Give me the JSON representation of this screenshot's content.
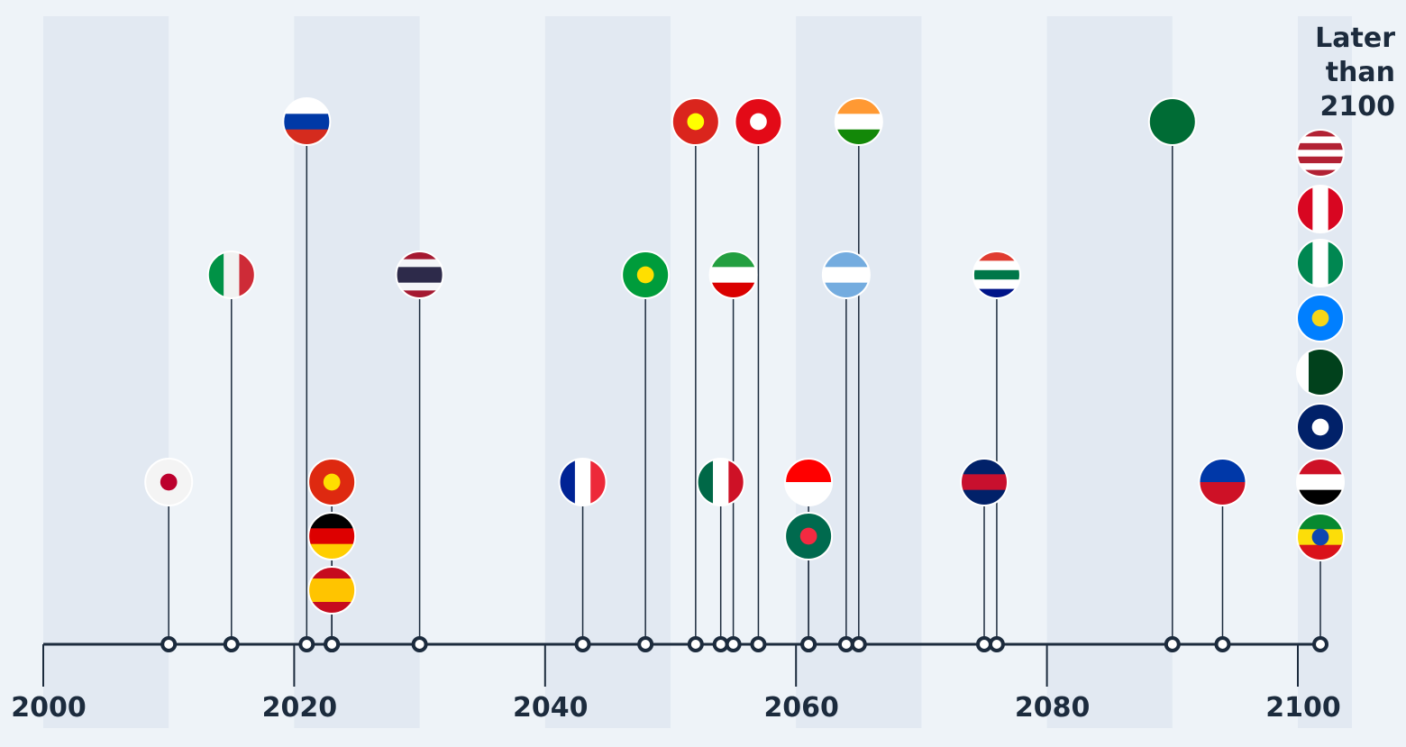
{
  "chart_data": {
    "type": "timeline",
    "later_label": "Later than 2100",
    "xlim": [
      2000,
      2100
    ],
    "xticks": [
      2000,
      2020,
      2040,
      2060,
      2080,
      2100
    ],
    "band_color": "#e2e9f2",
    "axis_color": "#1c2b3d",
    "points": [
      {
        "x": 2010,
        "flag": {
          "dir": "h",
          "colors": [
            "#f4f4f4"
          ],
          "dot": "#bc002d"
        }
      },
      {
        "x": 2015,
        "flag": {
          "dir": "v",
          "colors": [
            "#009246",
            "#f1f2f1",
            "#ce2b37"
          ]
        }
      },
      {
        "x": 2021,
        "flag": {
          "dir": "h",
          "colors": [
            "#ffffff",
            "#0039a6",
            "#d52b1e"
          ]
        }
      },
      {
        "x": 2023,
        "flag": {
          "dir": "h",
          "colors": [
            "#de2910"
          ],
          "dot": "#ffde00"
        }
      },
      {
        "x": 2023,
        "flag": {
          "dir": "h",
          "colors": [
            "#000000",
            "#dd0000",
            "#ffce00"
          ]
        }
      },
      {
        "x": 2023,
        "flag": {
          "dir": "h",
          "colors": [
            "#c60b1e",
            "#ffc400",
            "#ffc400",
            "#c60b1e"
          ]
        }
      },
      {
        "x": 2030,
        "flag": {
          "dir": "h",
          "colors": [
            "#a51931",
            "#f4f5f8",
            "#2d2a4a",
            "#2d2a4a",
            "#f4f5f8",
            "#a51931"
          ]
        }
      },
      {
        "x": 2043,
        "flag": {
          "dir": "v",
          "colors": [
            "#002395",
            "#ffffff",
            "#ed2939"
          ]
        }
      },
      {
        "x": 2048,
        "flag": {
          "dir": "h",
          "colors": [
            "#009c3b"
          ],
          "dot": "#ffdf00"
        }
      },
      {
        "x": 2052,
        "flag": {
          "dir": "h",
          "colors": [
            "#da251d"
          ],
          "dot": "#ffff00"
        }
      },
      {
        "x": 2054,
        "flag": {
          "dir": "v",
          "colors": [
            "#006847",
            "#ffffff",
            "#ce1126"
          ]
        }
      },
      {
        "x": 2055,
        "flag": {
          "dir": "h",
          "colors": [
            "#239f40",
            "#ffffff",
            "#da0000"
          ]
        }
      },
      {
        "x": 2057,
        "flag": {
          "dir": "h",
          "colors": [
            "#e30a17"
          ],
          "dot": "#ffffff"
        }
      },
      {
        "x": 2061,
        "flag": {
          "dir": "h",
          "colors": [
            "#ff0000",
            "#ffffff"
          ]
        }
      },
      {
        "x": 2061,
        "flag": {
          "dir": "h",
          "colors": [
            "#006a4e"
          ],
          "dot": "#f42a41"
        }
      },
      {
        "x": 2064,
        "flag": {
          "dir": "h",
          "colors": [
            "#74acdf",
            "#ffffff",
            "#74acdf"
          ]
        }
      },
      {
        "x": 2065,
        "flag": {
          "dir": "h",
          "colors": [
            "#ff9933",
            "#ffffff",
            "#138808"
          ]
        }
      },
      {
        "x": 2075,
        "flag": {
          "dir": "h",
          "colors": [
            "#012169",
            "#c8102e",
            "#012169"
          ]
        }
      },
      {
        "x": 2076,
        "flag": {
          "dir": "h",
          "colors": [
            "#e03c31",
            "#ffffff",
            "#007749",
            "#ffffff",
            "#001489"
          ]
        }
      },
      {
        "x": 2090,
        "flag": {
          "dir": "h",
          "colors": [
            "#006c35"
          ]
        }
      },
      {
        "x": 2094,
        "flag": {
          "dir": "h",
          "colors": [
            "#0038a8",
            "#ce1126"
          ]
        }
      }
    ],
    "later_flags": [
      {
        "dir": "h",
        "colors": [
          "#b22234",
          "#ffffff",
          "#b22234",
          "#ffffff",
          "#b22234",
          "#ffffff",
          "#b22234"
        ]
      },
      {
        "dir": "v",
        "colors": [
          "#d80621",
          "#ffffff",
          "#d80621"
        ]
      },
      {
        "dir": "v",
        "colors": [
          "#008751",
          "#ffffff",
          "#008751"
        ]
      },
      {
        "dir": "h",
        "colors": [
          "#007fff"
        ],
        "dot": "#f7d618"
      },
      {
        "dir": "v",
        "colors": [
          "#ffffff",
          "#01411c",
          "#01411c",
          "#01411c"
        ]
      },
      {
        "dir": "h",
        "colors": [
          "#012169"
        ],
        "dot": "#ffffff"
      },
      {
        "dir": "h",
        "colors": [
          "#ce1126",
          "#ffffff",
          "#000000"
        ]
      },
      {
        "dir": "h",
        "colors": [
          "#078930",
          "#fcdd09",
          "#da121a"
        ],
        "dot": "#0f47af"
      }
    ]
  }
}
